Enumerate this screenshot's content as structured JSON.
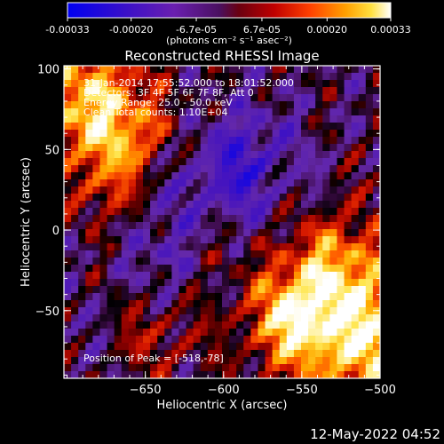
{
  "colorbar": {
    "tick_labels": [
      "-0.00033",
      "-0.00020",
      "-6.7e-05",
      "6.7e-05",
      "0.00020",
      "0.00033"
    ],
    "tick_values": [
      -0.00033,
      -0.0002,
      -6.7e-05,
      6.7e-05,
      0.0002,
      0.00033
    ],
    "range": [
      -0.00033,
      0.00033
    ],
    "unit_label": "(photons cm⁻² s⁻¹ asec⁻²)",
    "colormap": "rainbow-to-hot: blue, purple, red, orange, yellow, white"
  },
  "chart_data": {
    "type": "heatmap",
    "title": "Reconstructed RHESSI Image",
    "xlabel": "Heliocentric X (arcsec)",
    "ylabel": "Heliocentric Y (arcsec)",
    "xlim": [
      -702,
      -500
    ],
    "ylim": [
      -92,
      102
    ],
    "xticks": [
      -650,
      -600,
      -550,
      -500
    ],
    "xtick_labels": [
      "−650",
      "−600",
      "−550",
      "−500"
    ],
    "yticks": [
      -50,
      0,
      50,
      100
    ],
    "ytick_labels": [
      "−50",
      "0",
      "50",
      "100"
    ],
    "annotations": [
      "31-Jan-2014 17:55:52.000 to 18:01:52.000",
      "Detectors: 3F 4F 5F 6F 7F 8F, Att 0",
      "Energy Range: 25.0 - 50.0 keV",
      "Clean     Total counts: 1.10E+04"
    ],
    "peak_label": "Position of Peak = [-518,-78]",
    "peak_position": [
      -518,
      -78
    ],
    "grid": false
  },
  "footer": {
    "timestamp": "12-May-2022 04:52"
  },
  "colors": {
    "background": "#000000",
    "foreground": "#ffffff",
    "low": "#0000ff",
    "mid": "#5a1f8c",
    "high": "#ffffff"
  }
}
